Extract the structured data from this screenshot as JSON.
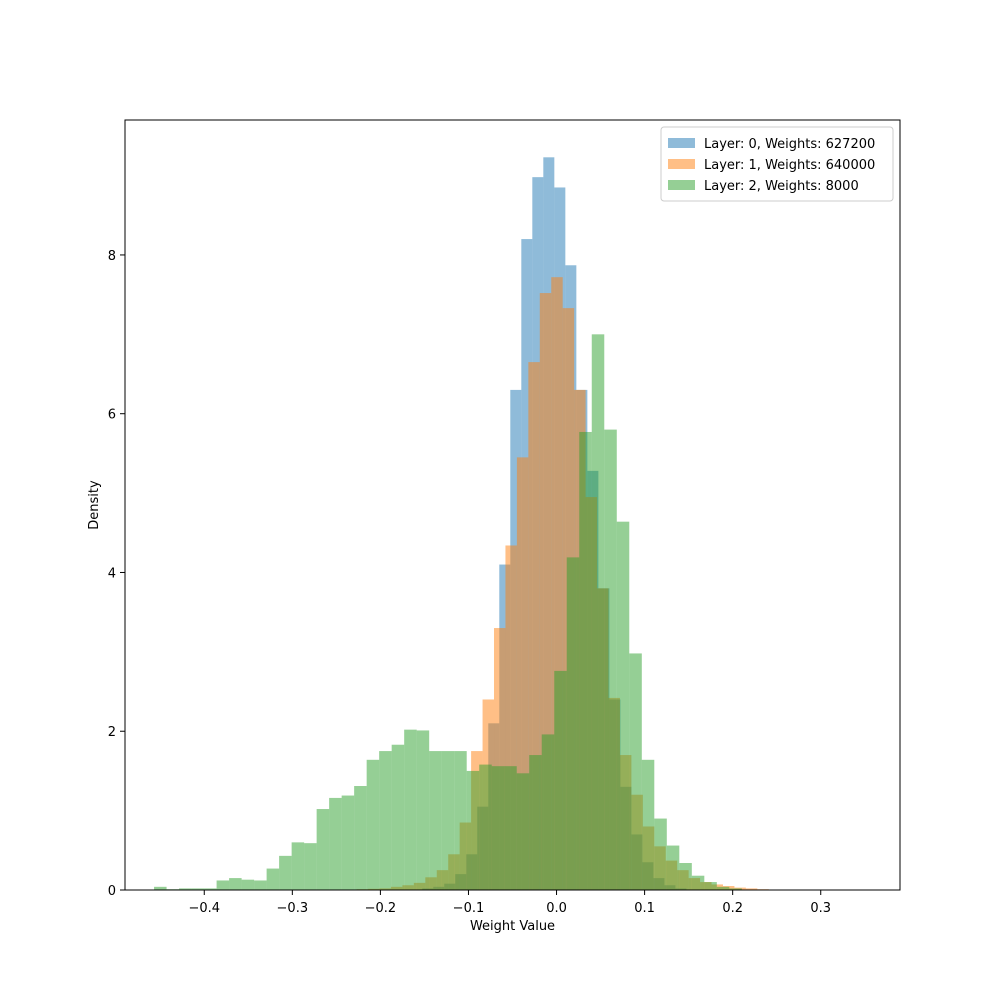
{
  "chart_data": {
    "type": "bar",
    "subtype": "overlapping histogram (density)",
    "title": "",
    "xlabel": "Weight Value",
    "ylabel": "Density",
    "xlim": [
      -0.49,
      0.39
    ],
    "ylim": [
      0,
      9.7
    ],
    "xticks": [
      -0.4,
      -0.3,
      -0.2,
      -0.1,
      0.0,
      0.1,
      0.2,
      0.3
    ],
    "xtick_labels": [
      "−0.4",
      "−0.3",
      "−0.2",
      "−0.1",
      "0.0",
      "0.1",
      "0.2",
      "0.3"
    ],
    "yticks": [
      0,
      2,
      4,
      6,
      8
    ],
    "ytick_labels": [
      "0",
      "2",
      "4",
      "6",
      "8"
    ],
    "grid": false,
    "legend_position": "top-right",
    "bar_alpha": 0.5,
    "series": [
      {
        "name": "Layer: 0, Weights: 627200",
        "color": "#1f77b4",
        "bins": [
          [
            -0.1525,
            -0.14,
            0.02
          ],
          [
            -0.14,
            -0.1275,
            0.04
          ],
          [
            -0.1275,
            -0.115,
            0.08
          ],
          [
            -0.115,
            -0.1025,
            0.2
          ],
          [
            -0.1025,
            -0.09,
            0.45
          ],
          [
            -0.09,
            -0.0775,
            1.05
          ],
          [
            -0.0775,
            -0.065,
            2.1
          ],
          [
            -0.065,
            -0.0525,
            4.1
          ],
          [
            -0.0525,
            -0.04,
            6.3
          ],
          [
            -0.04,
            -0.0275,
            8.2
          ],
          [
            -0.0275,
            -0.015,
            8.98
          ],
          [
            -0.015,
            -0.0025,
            9.23
          ],
          [
            -0.0025,
            0.01,
            8.85
          ],
          [
            0.01,
            0.0225,
            7.87
          ],
          [
            0.0225,
            0.035,
            6.3
          ],
          [
            0.035,
            0.0475,
            5.28
          ],
          [
            0.0475,
            0.06,
            3.8
          ],
          [
            0.06,
            0.0725,
            2.4
          ],
          [
            0.0725,
            0.085,
            1.3
          ],
          [
            0.085,
            0.0975,
            0.7
          ],
          [
            0.0975,
            0.11,
            0.35
          ],
          [
            0.11,
            0.1225,
            0.15
          ],
          [
            0.1225,
            0.135,
            0.06
          ],
          [
            0.135,
            0.1475,
            0.02
          ]
        ]
      },
      {
        "name": "Layer: 1, Weights: 640000",
        "color": "#ff7f0e",
        "bins": [
          [
            -0.24,
            -0.227,
            0.005
          ],
          [
            -0.227,
            -0.214,
            0.01
          ],
          [
            -0.214,
            -0.201,
            0.015
          ],
          [
            -0.201,
            -0.188,
            0.02
          ],
          [
            -0.188,
            -0.175,
            0.04
          ],
          [
            -0.175,
            -0.162,
            0.06
          ],
          [
            -0.162,
            -0.149,
            0.09
          ],
          [
            -0.149,
            -0.136,
            0.16
          ],
          [
            -0.136,
            -0.123,
            0.25
          ],
          [
            -0.123,
            -0.11,
            0.45
          ],
          [
            -0.11,
            -0.097,
            0.85
          ],
          [
            -0.097,
            -0.084,
            1.75
          ],
          [
            -0.084,
            -0.071,
            2.4
          ],
          [
            -0.071,
            -0.058,
            3.3
          ],
          [
            -0.058,
            -0.045,
            4.34
          ],
          [
            -0.045,
            -0.032,
            5.45
          ],
          [
            -0.032,
            -0.019,
            6.65
          ],
          [
            -0.019,
            -0.006,
            7.52
          ],
          [
            -0.006,
            0.007,
            7.72
          ],
          [
            0.007,
            0.02,
            7.33
          ],
          [
            0.02,
            0.033,
            6.3
          ],
          [
            0.033,
            0.046,
            4.95
          ],
          [
            0.046,
            0.059,
            3.8
          ],
          [
            0.059,
            0.072,
            2.42
          ],
          [
            0.072,
            0.085,
            1.7
          ],
          [
            0.085,
            0.098,
            1.2
          ],
          [
            0.098,
            0.111,
            0.8
          ],
          [
            0.111,
            0.124,
            0.55
          ],
          [
            0.124,
            0.137,
            0.37
          ],
          [
            0.137,
            0.15,
            0.25
          ],
          [
            0.15,
            0.163,
            0.15
          ],
          [
            0.163,
            0.176,
            0.1
          ],
          [
            0.176,
            0.189,
            0.07
          ],
          [
            0.189,
            0.202,
            0.05
          ],
          [
            0.202,
            0.215,
            0.03
          ],
          [
            0.215,
            0.228,
            0.02
          ],
          [
            0.228,
            0.241,
            0.01
          ],
          [
            0.241,
            0.254,
            0.005
          ]
        ]
      },
      {
        "name": "Layer: 2, Weights: 8000",
        "color": "#2ca02c",
        "bins": [
          [
            -0.457,
            -0.4428,
            0.04
          ],
          [
            -0.4428,
            -0.4286,
            0.01
          ],
          [
            -0.4286,
            -0.4144,
            0.02
          ],
          [
            -0.4144,
            -0.4002,
            0.02
          ],
          [
            -0.4002,
            -0.386,
            0.02
          ],
          [
            -0.386,
            -0.3718,
            0.12
          ],
          [
            -0.3718,
            -0.3576,
            0.15
          ],
          [
            -0.3576,
            -0.3434,
            0.13
          ],
          [
            -0.3434,
            -0.3292,
            0.12
          ],
          [
            -0.3292,
            -0.315,
            0.27
          ],
          [
            -0.315,
            -0.3008,
            0.43
          ],
          [
            -0.3008,
            -0.2866,
            0.6
          ],
          [
            -0.2866,
            -0.2724,
            0.59
          ],
          [
            -0.2724,
            -0.2582,
            1.02
          ],
          [
            -0.2582,
            -0.244,
            1.16
          ],
          [
            -0.244,
            -0.2298,
            1.19
          ],
          [
            -0.2298,
            -0.2156,
            1.31
          ],
          [
            -0.2156,
            -0.2014,
            1.64
          ],
          [
            -0.2014,
            -0.1872,
            1.75
          ],
          [
            -0.1872,
            -0.173,
            1.83
          ],
          [
            -0.173,
            -0.1588,
            2.02
          ],
          [
            -0.1588,
            -0.1446,
            2.01
          ],
          [
            -0.1446,
            -0.1304,
            1.75
          ],
          [
            -0.1304,
            -0.1162,
            1.75
          ],
          [
            -0.1162,
            -0.102,
            1.75
          ],
          [
            -0.102,
            -0.0878,
            1.5
          ],
          [
            -0.0878,
            -0.0736,
            1.58
          ],
          [
            -0.0736,
            -0.0594,
            1.56
          ],
          [
            -0.0594,
            -0.0452,
            1.56
          ],
          [
            -0.0452,
            -0.031,
            1.47
          ],
          [
            -0.031,
            -0.0168,
            1.7
          ],
          [
            -0.0168,
            -0.0026,
            1.96
          ],
          [
            -0.0026,
            0.0116,
            2.76
          ],
          [
            0.0116,
            0.0258,
            4.19
          ],
          [
            0.0258,
            0.04,
            5.77
          ],
          [
            0.04,
            0.0542,
            7.0
          ],
          [
            0.0542,
            0.0684,
            5.8
          ],
          [
            0.0684,
            0.0826,
            4.64
          ],
          [
            0.0826,
            0.0968,
            2.98
          ],
          [
            0.0968,
            0.111,
            1.64
          ],
          [
            0.111,
            0.1252,
            0.9
          ],
          [
            0.1252,
            0.1394,
            0.56
          ],
          [
            0.1394,
            0.1536,
            0.34
          ],
          [
            0.1536,
            0.1678,
            0.18
          ],
          [
            0.1678,
            0.182,
            0.1
          ],
          [
            0.182,
            0.1962,
            0.04
          ],
          [
            0.1962,
            0.2104,
            0.02
          ]
        ]
      }
    ]
  }
}
